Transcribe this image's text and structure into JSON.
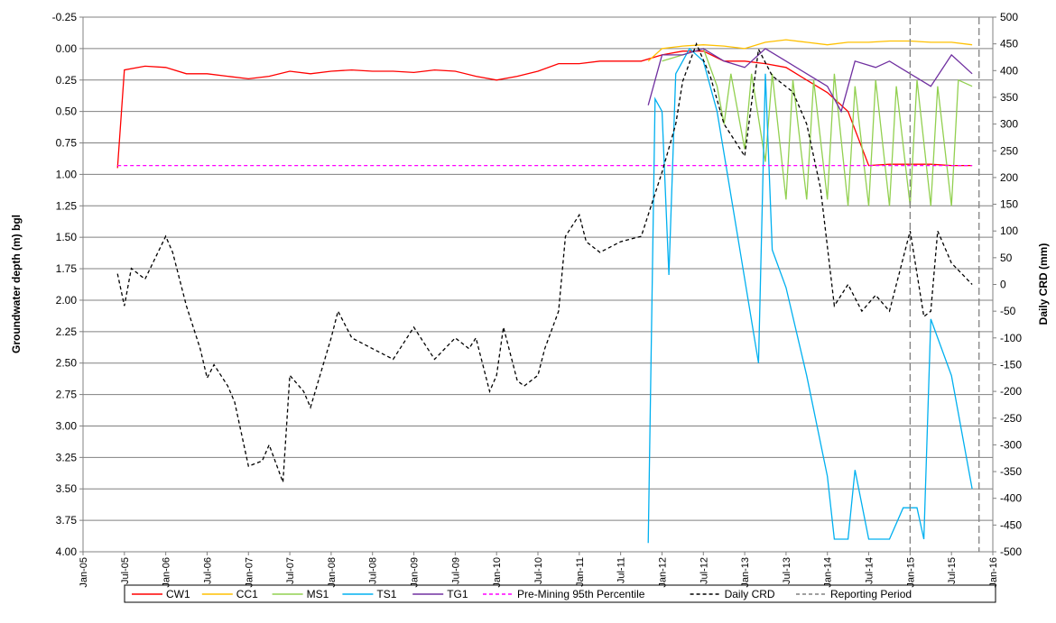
{
  "chart_data": {
    "type": "line",
    "ylabel": "Groundwater depth (m) bgl",
    "y2label": "Daily CRD (mm)",
    "ylim": [
      -0.25,
      4.0
    ],
    "y_inverted": true,
    "yticks": [
      -0.25,
      {
        "value": 0,
        "label": "0.00"
      },
      0.25,
      {
        "value": 0.5,
        "label": "0.50"
      },
      0.75,
      {
        "value": 1,
        "label": "1.00"
      },
      1.25,
      {
        "value": 1.5,
        "label": "1.50"
      },
      1.75,
      {
        "value": 2,
        "label": "2.00"
      },
      2.25,
      {
        "value": 2.5,
        "label": "2.50"
      },
      2.75,
      {
        "value": 3,
        "label": "3.00"
      },
      3.25,
      {
        "value": 3.5,
        "label": "3.50"
      },
      3.75,
      {
        "value": 4,
        "label": "4.00"
      }
    ],
    "y2lim": [
      -500,
      500
    ],
    "y2ticks": [
      500,
      450,
      400,
      350,
      300,
      250,
      200,
      150,
      100,
      50,
      0,
      -50,
      -100,
      -150,
      -200,
      -250,
      -300,
      -350,
      -400,
      -450,
      -500
    ],
    "xlim": [
      "2005-01",
      "2016-01"
    ],
    "xticks": [
      {
        "value": "2005-01",
        "label": "Jan-05"
      },
      {
        "value": "2005-07",
        "label": "Jul-05"
      },
      {
        "value": "2006-01",
        "label": "Jan-06"
      },
      {
        "value": "2006-07",
        "label": "Jul-06"
      },
      {
        "value": "2007-01",
        "label": "Jan-07"
      },
      {
        "value": "2007-07",
        "label": "Jul-07"
      },
      {
        "value": "2008-01",
        "label": "Jan-08"
      },
      {
        "value": "2008-07",
        "label": "Jul-08"
      },
      {
        "value": "2009-01",
        "label": "Jan-09"
      },
      {
        "value": "2009-07",
        "label": "Jul-09"
      },
      {
        "value": "2010-01",
        "label": "Jan-10"
      },
      {
        "value": "2010-07",
        "label": "Jul-10"
      },
      {
        "value": "2011-01",
        "label": "Jan-11"
      },
      {
        "value": "2011-07",
        "label": "Jul-11"
      },
      {
        "value": "2012-01",
        "label": "Jan-12"
      },
      {
        "value": "2012-07",
        "label": "Jul-12"
      },
      {
        "value": "2013-01",
        "label": "Jan-13"
      },
      {
        "value": "2013-07",
        "label": "Jul-13"
      },
      {
        "value": "2014-01",
        "label": "Jan-14"
      },
      {
        "value": "2014-07",
        "label": "Jul-14"
      },
      {
        "value": "2015-01",
        "label": "Jan-15"
      },
      {
        "value": "2015-07",
        "label": "Jul-15"
      },
      {
        "value": "2016-01",
        "label": "Jan-16"
      }
    ],
    "grid": true,
    "legend": "bottom",
    "series": [
      {
        "name": "CW1",
        "color": "#ff0000",
        "dash": false,
        "x": [
          "2005-06",
          "2005-07",
          "2005-10",
          "2006-01",
          "2006-04",
          "2006-07",
          "2006-10",
          "2007-01",
          "2007-04",
          "2007-07",
          "2007-10",
          "2008-01",
          "2008-04",
          "2008-07",
          "2008-10",
          "2009-01",
          "2009-04",
          "2009-07",
          "2009-10",
          "2010-01",
          "2010-04",
          "2010-07",
          "2010-10",
          "2011-01",
          "2011-04",
          "2011-07",
          "2011-10",
          "2012-01",
          "2012-04",
          "2012-07",
          "2012-10",
          "2013-01",
          "2013-04",
          "2013-07",
          "2013-10",
          "2014-01",
          "2014-04",
          "2014-07",
          "2014-10",
          "2015-01",
          "2015-04",
          "2015-07",
          "2015-10"
        ],
        "values": [
          0.95,
          0.17,
          0.14,
          0.15,
          0.2,
          0.2,
          0.22,
          0.24,
          0.22,
          0.18,
          0.2,
          0.18,
          0.17,
          0.18,
          0.18,
          0.19,
          0.17,
          0.18,
          0.22,
          0.25,
          0.22,
          0.18,
          0.12,
          0.12,
          0.1,
          0.1,
          0.1,
          0.05,
          0.02,
          0.02,
          0.1,
          0.1,
          0.12,
          0.15,
          0.25,
          0.35,
          0.5,
          0.93,
          0.92,
          0.92,
          0.92,
          0.93,
          0.93
        ]
      },
      {
        "name": "CC1",
        "color": "#ffc000",
        "dash": false,
        "x": [
          "2011-11",
          "2012-01",
          "2012-04",
          "2012-07",
          "2012-10",
          "2013-01",
          "2013-04",
          "2013-07",
          "2013-10",
          "2014-01",
          "2014-04",
          "2014-07",
          "2014-10",
          "2015-01",
          "2015-04",
          "2015-07",
          "2015-10"
        ],
        "values": [
          0.1,
          0.0,
          -0.02,
          -0.03,
          -0.02,
          0.0,
          -0.05,
          -0.07,
          -0.05,
          -0.03,
          -0.05,
          -0.05,
          -0.06,
          -0.06,
          -0.05,
          -0.05,
          -0.03
        ]
      },
      {
        "name": "MS1",
        "color": "#92d050",
        "dash": false,
        "x": [
          "2012-01",
          "2012-04",
          "2012-07",
          "2012-09",
          "2012-10",
          "2012-11",
          "2013-01",
          "2013-02",
          "2013-04",
          "2013-05",
          "2013-07",
          "2013-08",
          "2013-10",
          "2013-11",
          "2014-01",
          "2014-02",
          "2014-04",
          "2014-05",
          "2014-07",
          "2014-08",
          "2014-10",
          "2014-11",
          "2015-01",
          "2015-02",
          "2015-04",
          "2015-05",
          "2015-07",
          "2015-08",
          "2015-10"
        ],
        "values": [
          0.1,
          0.05,
          0.0,
          0.3,
          0.6,
          0.2,
          0.8,
          0.2,
          0.9,
          0.2,
          1.2,
          0.25,
          1.2,
          0.25,
          1.2,
          0.2,
          1.25,
          0.3,
          1.25,
          0.25,
          1.25,
          0.3,
          1.25,
          0.25,
          1.25,
          0.3,
          1.25,
          0.25,
          0.3
        ]
      },
      {
        "name": "TS1",
        "color": "#00b0f0",
        "dash": false,
        "x": [
          "2011-11",
          "2011-12",
          "2012-01",
          "2012-02",
          "2012-03",
          "2012-05",
          "2012-07",
          "2012-09",
          "2012-12",
          "2013-03",
          "2013-04",
          "2013-05",
          "2013-07",
          "2013-10",
          "2014-01",
          "2014-02",
          "2014-04",
          "2014-05",
          "2014-07",
          "2014-10",
          "2014-12",
          "2015-02",
          "2015-03",
          "2015-04",
          "2015-07",
          "2015-10"
        ],
        "values": [
          3.93,
          0.4,
          0.5,
          1.8,
          0.2,
          0.0,
          0.1,
          0.5,
          1.5,
          2.5,
          0.2,
          1.6,
          1.9,
          2.6,
          3.4,
          3.9,
          3.9,
          3.35,
          3.9,
          3.9,
          3.65,
          3.65,
          3.9,
          2.15,
          2.6,
          3.5
        ]
      },
      {
        "name": "TG1",
        "color": "#7030a0",
        "dash": false,
        "x": [
          "2011-11",
          "2012-01",
          "2012-04",
          "2012-07",
          "2012-10",
          "2013-01",
          "2013-04",
          "2013-07",
          "2013-10",
          "2014-01",
          "2014-03",
          "2014-05",
          "2014-08",
          "2014-10",
          "2015-01",
          "2015-04",
          "2015-07",
          "2015-10"
        ],
        "values": [
          0.45,
          0.05,
          0.05,
          0.0,
          0.1,
          0.15,
          0.0,
          0.1,
          0.2,
          0.3,
          0.5,
          0.1,
          0.15,
          0.1,
          0.2,
          0.3,
          0.05,
          0.2
        ]
      },
      {
        "name": "Pre-Mining 95th Percentile",
        "color": "#ff00ff",
        "dash": true,
        "x": [
          "2005-06",
          "2015-10"
        ],
        "values": [
          0.93,
          0.93
        ]
      },
      {
        "name": "Daily CRD",
        "color": "#000000",
        "dash": true,
        "axis": "y2",
        "x": [
          "2005-06",
          "2005-07",
          "2005-08",
          "2005-10",
          "2006-01",
          "2006-02",
          "2006-04",
          "2006-06",
          "2006-07",
          "2006-08",
          "2006-10",
          "2006-11",
          "2007-01",
          "2007-03",
          "2007-04",
          "2007-06",
          "2007-07",
          "2007-09",
          "2007-10",
          "2008-01",
          "2008-02",
          "2008-04",
          "2008-07",
          "2008-10",
          "2009-01",
          "2009-04",
          "2009-07",
          "2009-09",
          "2009-10",
          "2009-12",
          "2010-01",
          "2010-02",
          "2010-04",
          "2010-05",
          "2010-07",
          "2010-08",
          "2010-10",
          "2010-11",
          "2011-01",
          "2011-02",
          "2011-04",
          "2011-07",
          "2011-10",
          "2011-12",
          "2012-01",
          "2012-03",
          "2012-04",
          "2012-06",
          "2012-08",
          "2012-10",
          "2012-12",
          "2013-01",
          "2013-03",
          "2013-05",
          "2013-08",
          "2013-10",
          "2013-12",
          "2014-02",
          "2014-04",
          "2014-06",
          "2014-08",
          "2014-10",
          "2015-01",
          "2015-03",
          "2015-04",
          "2015-05",
          "2015-07",
          "2015-10"
        ],
        "values": [
          20,
          -40,
          30,
          10,
          90,
          60,
          -40,
          -120,
          -175,
          -150,
          -190,
          -220,
          -340,
          -330,
          -300,
          -370,
          -170,
          -200,
          -230,
          -100,
          -50,
          -100,
          -120,
          -140,
          -80,
          -140,
          -100,
          -120,
          -100,
          -200,
          -170,
          -80,
          -180,
          -190,
          -170,
          -120,
          -50,
          90,
          130,
          80,
          60,
          80,
          90,
          170,
          210,
          300,
          380,
          450,
          390,
          300,
          260,
          240,
          440,
          390,
          360,
          300,
          180,
          -40,
          0,
          -50,
          -20,
          -50,
          100,
          -60,
          -50,
          100,
          40,
          0
        ]
      }
    ],
    "reporting_period": {
      "name": "Reporting Period",
      "color": "#808080",
      "x": [
        "2015-01",
        "2015-11"
      ]
    }
  }
}
